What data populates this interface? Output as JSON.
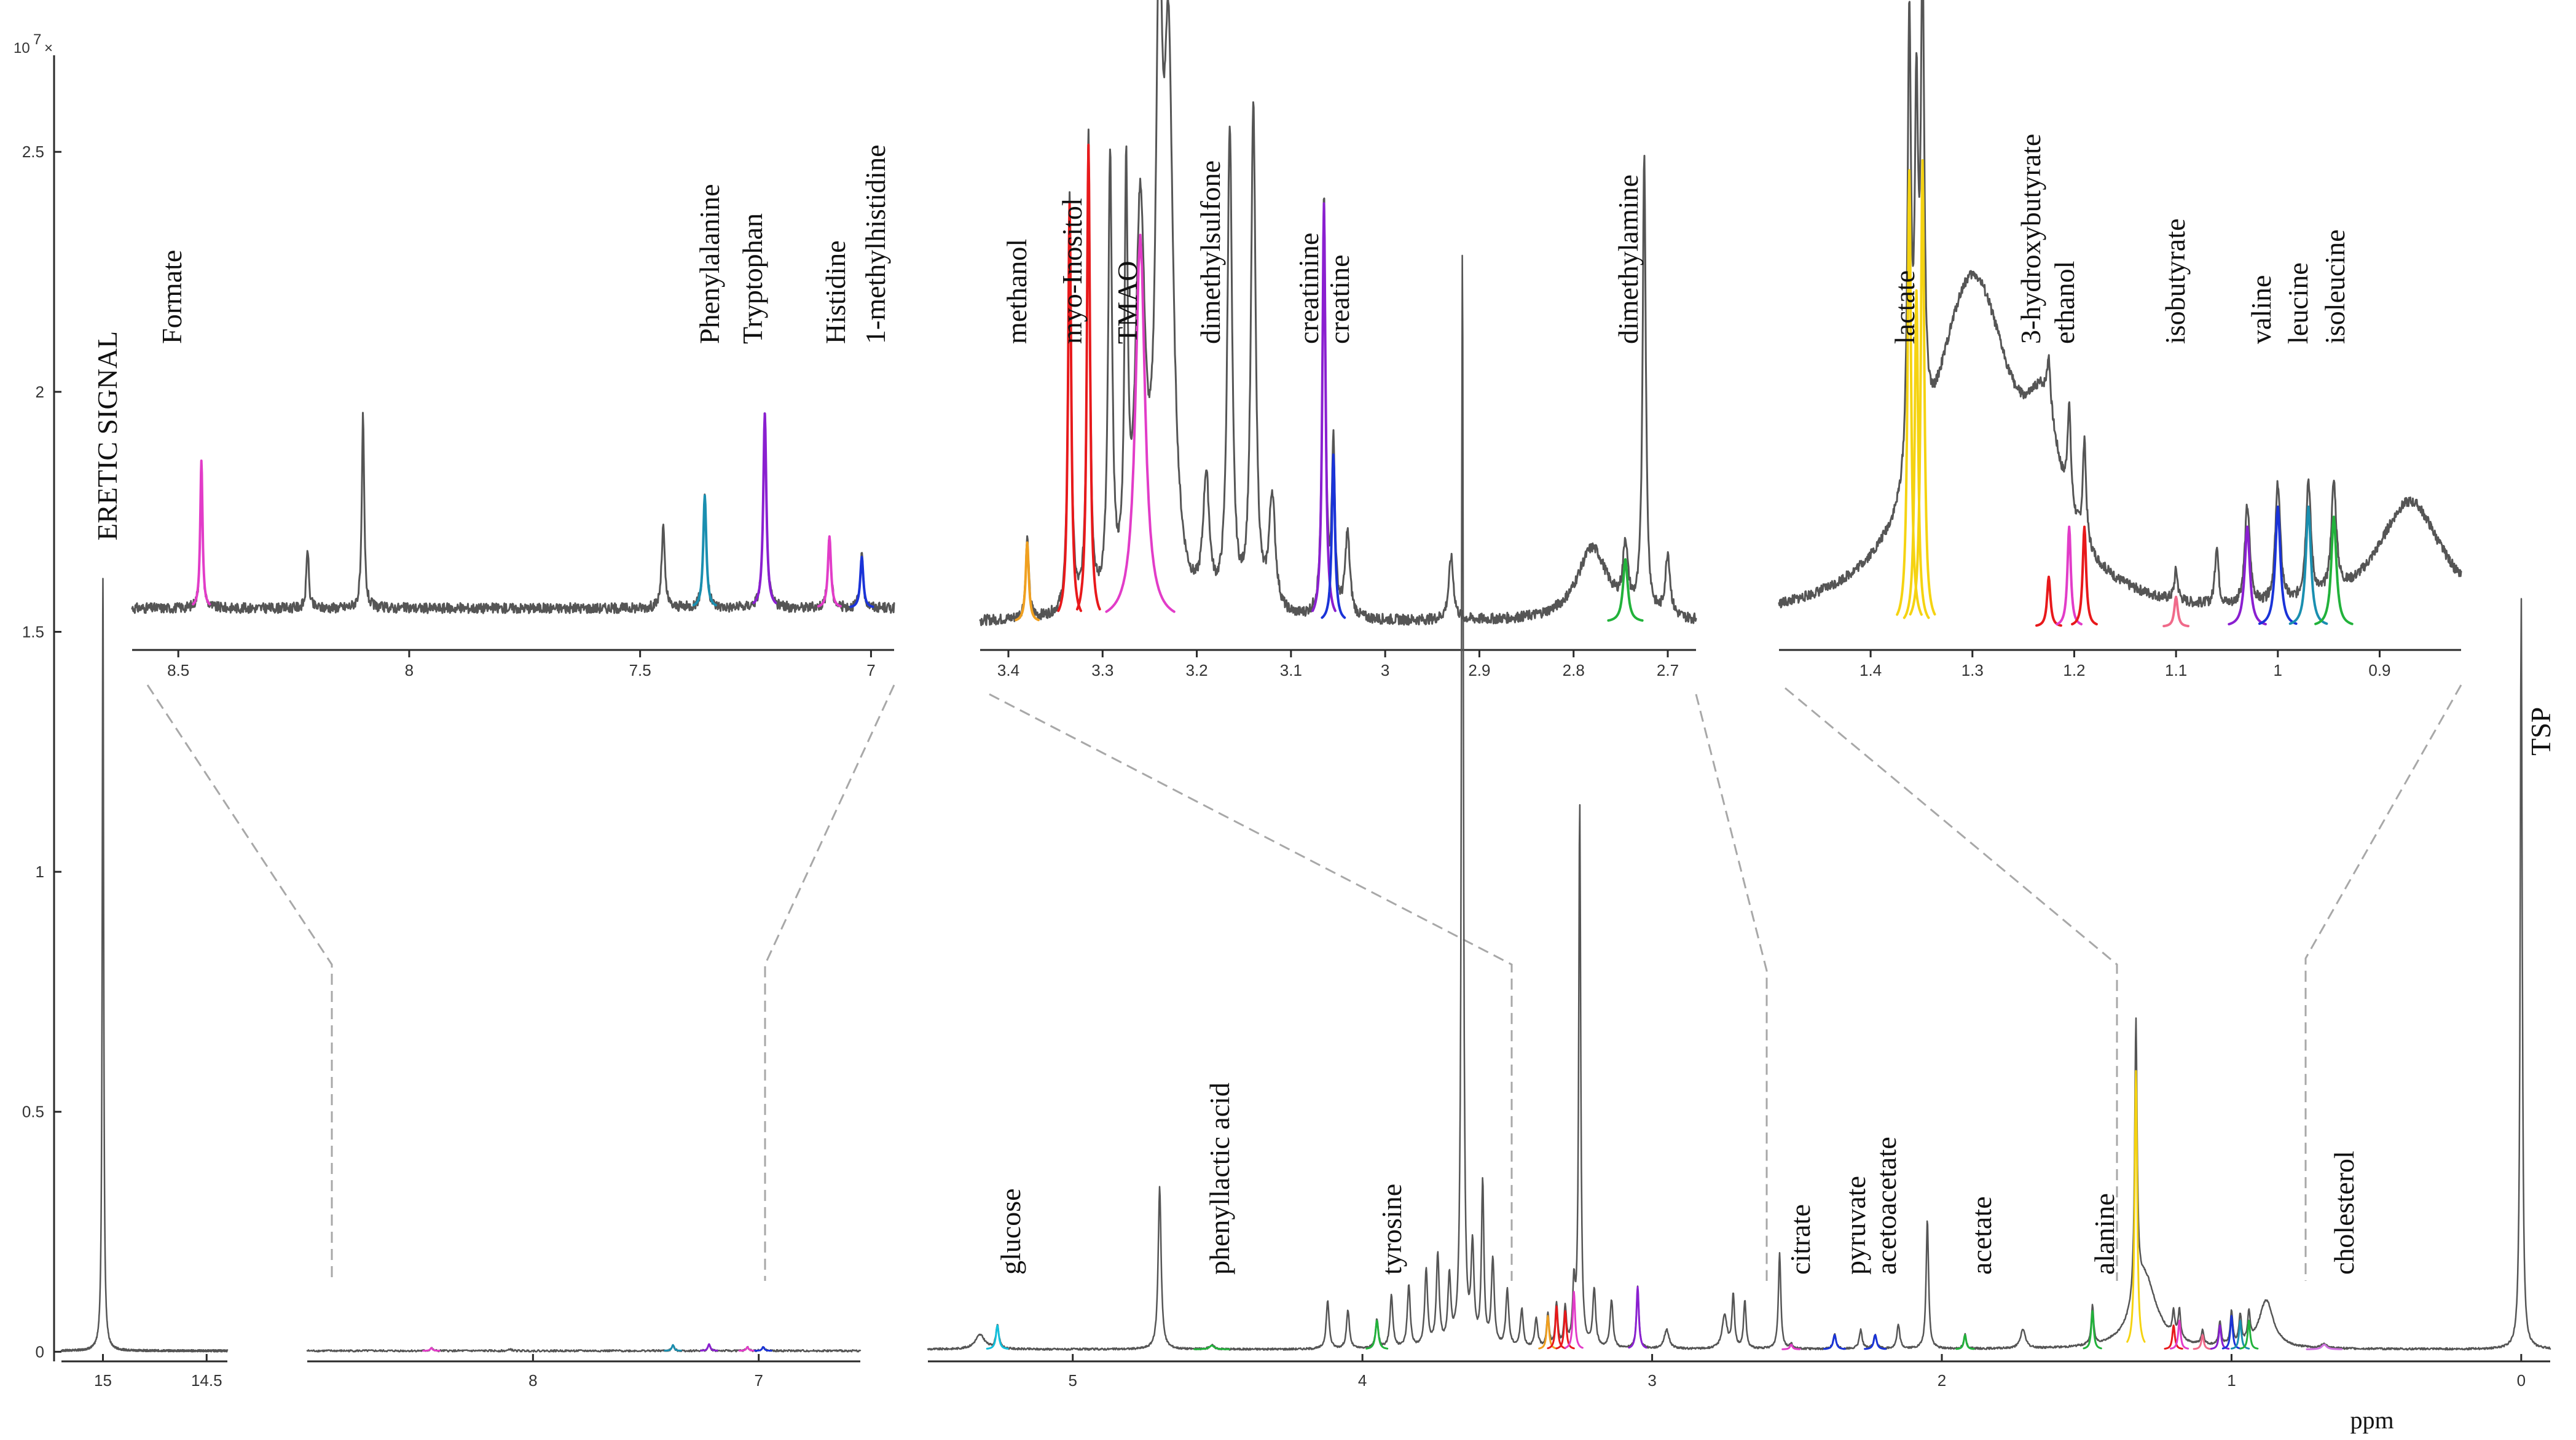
{
  "chart_data": {
    "type": "line",
    "title": "",
    "xlabel": "ppm",
    "ylabel": "",
    "y_exponent": "10",
    "y_exponent_power": "7",
    "y_exponent_suffix": "×",
    "ylim": [
      -0.02,
      2.65
    ],
    "y_ticks": [
      {
        "v": 0,
        "label": "0"
      },
      {
        "v": 0.5,
        "label": "0.5"
      },
      {
        "v": 1,
        "label": "1"
      },
      {
        "v": 1.5,
        "label": "1.5"
      },
      {
        "v": 2,
        "label": "2"
      },
      {
        "v": 2.5,
        "label": "2.5"
      }
    ],
    "colors": {
      "base": "#555555",
      "red": "#e8191b",
      "magenta": "#e23cc8",
      "purple": "#8a1fd0",
      "blue": "#1a33d8",
      "teal": "#1a8fb0",
      "cyan": "#12c0dc",
      "yellow": "#f5d311",
      "green": "#22b23b",
      "orange": "#f0a020",
      "pink": "#f06a8a",
      "lightmagenta": "#d070e0"
    },
    "main_segments": [
      {
        "name": "eretic-region",
        "xlim": [
          15.2,
          14.4
        ],
        "x_ticks": [
          {
            "v": 15,
            "label": "15"
          },
          {
            "v": 14.5,
            "label": "14.5"
          }
        ],
        "baseline": 0.002,
        "peaks": [
          {
            "x": 15.0,
            "h": 1.61,
            "w": 0.004,
            "c": "base"
          }
        ]
      },
      {
        "name": "aromatic-region",
        "xlim": [
          9.0,
          6.55
        ],
        "x_ticks": [
          {
            "v": 8,
            "label": "8"
          },
          {
            "v": 7,
            "label": "7"
          }
        ],
        "baseline": 0.002,
        "peaks": [
          {
            "x": 8.45,
            "h": 0.006,
            "w": 0.006,
            "c": "magenta"
          },
          {
            "x": 7.38,
            "h": 0.012,
            "w": 0.006,
            "c": "teal"
          },
          {
            "x": 7.22,
            "h": 0.014,
            "w": 0.006,
            "c": "purple"
          },
          {
            "x": 7.05,
            "h": 0.008,
            "w": 0.006,
            "c": "magenta"
          },
          {
            "x": 6.98,
            "h": 0.008,
            "w": 0.006,
            "c": "blue"
          },
          {
            "x": 8.1,
            "h": 0.004,
            "w": 0.006,
            "c": "base"
          }
        ]
      },
      {
        "name": "aliphatic-region",
        "xlim": [
          5.5,
          -0.1
        ],
        "x_ticks": [
          {
            "v": 5,
            "label": "5"
          },
          {
            "v": 4,
            "label": "4"
          },
          {
            "v": 3,
            "label": "3"
          },
          {
            "v": 2,
            "label": "2"
          },
          {
            "v": 1,
            "label": "1"
          },
          {
            "v": 0,
            "label": "0"
          }
        ],
        "baseline": 0.005,
        "peaks": [
          {
            "x": 5.32,
            "h": 0.03,
            "w": 0.02,
            "c": "base"
          },
          {
            "x": 5.26,
            "h": 0.05,
            "w": 0.006,
            "c": "cyan"
          },
          {
            "x": 4.7,
            "h": 0.34,
            "w": 0.006,
            "c": "base"
          },
          {
            "x": 4.52,
            "h": 0.008,
            "w": 0.01,
            "c": "green"
          },
          {
            "x": 4.12,
            "h": 0.1,
            "w": 0.006,
            "c": "base"
          },
          {
            "x": 4.05,
            "h": 0.08,
            "w": 0.006,
            "c": "base"
          },
          {
            "x": 3.95,
            "h": 0.06,
            "w": 0.006,
            "c": "green"
          },
          {
            "x": 3.9,
            "h": 0.11,
            "w": 0.006,
            "c": "base"
          },
          {
            "x": 3.84,
            "h": 0.13,
            "w": 0.006,
            "c": "base"
          },
          {
            "x": 3.78,
            "h": 0.16,
            "w": 0.006,
            "c": "base"
          },
          {
            "x": 3.74,
            "h": 0.19,
            "w": 0.006,
            "c": "base"
          },
          {
            "x": 3.7,
            "h": 0.14,
            "w": 0.006,
            "c": "base"
          },
          {
            "x": 3.655,
            "h": 2.3,
            "w": 0.004,
            "c": "base"
          },
          {
            "x": 3.62,
            "h": 0.2,
            "w": 0.006,
            "c": "base"
          },
          {
            "x": 3.585,
            "h": 0.34,
            "w": 0.005,
            "c": "base"
          },
          {
            "x": 3.55,
            "h": 0.18,
            "w": 0.006,
            "c": "base"
          },
          {
            "x": 3.5,
            "h": 0.12,
            "w": 0.006,
            "c": "base"
          },
          {
            "x": 3.45,
            "h": 0.08,
            "w": 0.006,
            "c": "base"
          },
          {
            "x": 3.4,
            "h": 0.06,
            "w": 0.006,
            "c": "base"
          },
          {
            "x": 3.36,
            "h": 0.07,
            "w": 0.005,
            "c": "orange"
          },
          {
            "x": 3.33,
            "h": 0.09,
            "w": 0.005,
            "c": "red"
          },
          {
            "x": 3.3,
            "h": 0.08,
            "w": 0.005,
            "c": "red"
          },
          {
            "x": 3.27,
            "h": 0.12,
            "w": 0.005,
            "c": "magenta"
          },
          {
            "x": 3.25,
            "h": 1.14,
            "w": 0.004,
            "c": "base"
          },
          {
            "x": 3.2,
            "h": 0.12,
            "w": 0.006,
            "c": "base"
          },
          {
            "x": 3.14,
            "h": 0.1,
            "w": 0.006,
            "c": "base"
          },
          {
            "x": 3.05,
            "h": 0.13,
            "w": 0.005,
            "c": "purple"
          },
          {
            "x": 2.95,
            "h": 0.04,
            "w": 0.01,
            "c": "base"
          },
          {
            "x": 2.75,
            "h": 0.07,
            "w": 0.01,
            "c": "base"
          },
          {
            "x": 2.72,
            "h": 0.11,
            "w": 0.005,
            "c": "base"
          },
          {
            "x": 2.56,
            "h": 0.2,
            "w": 0.005,
            "c": "base"
          },
          {
            "x": 2.68,
            "h": 0.1,
            "w": 0.005,
            "c": "base"
          },
          {
            "x": 2.52,
            "h": 0.01,
            "w": 0.005,
            "c": "magenta"
          },
          {
            "x": 2.37,
            "h": 0.03,
            "w": 0.006,
            "c": "blue"
          },
          {
            "x": 2.28,
            "h": 0.04,
            "w": 0.006,
            "c": "base"
          },
          {
            "x": 2.23,
            "h": 0.03,
            "w": 0.006,
            "c": "blue"
          },
          {
            "x": 2.15,
            "h": 0.05,
            "w": 0.006,
            "c": "base"
          },
          {
            "x": 2.05,
            "h": 0.27,
            "w": 0.005,
            "c": "base"
          },
          {
            "x": 1.92,
            "h": 0.03,
            "w": 0.005,
            "c": "green"
          },
          {
            "x": 1.72,
            "h": 0.04,
            "w": 0.01,
            "c": "base"
          },
          {
            "x": 1.48,
            "h": 0.08,
            "w": 0.005,
            "c": "green"
          },
          {
            "x": 1.33,
            "h": 0.58,
            "w": 0.005,
            "c": "yellow"
          },
          {
            "x": 1.3,
            "h": 0.15,
            "w": 0.05,
            "c": "base"
          },
          {
            "x": 1.2,
            "h": 0.05,
            "w": 0.005,
            "c": "red"
          },
          {
            "x": 1.18,
            "h": 0.06,
            "w": 0.005,
            "c": "magenta"
          },
          {
            "x": 1.1,
            "h": 0.03,
            "w": 0.005,
            "c": "pink"
          },
          {
            "x": 1.04,
            "h": 0.05,
            "w": 0.005,
            "c": "purple"
          },
          {
            "x": 1.0,
            "h": 0.07,
            "w": 0.005,
            "c": "blue"
          },
          {
            "x": 0.97,
            "h": 0.06,
            "w": 0.005,
            "c": "teal"
          },
          {
            "x": 0.94,
            "h": 0.06,
            "w": 0.005,
            "c": "green"
          },
          {
            "x": 0.88,
            "h": 0.1,
            "w": 0.03,
            "c": "base"
          },
          {
            "x": 0.68,
            "h": 0.01,
            "w": 0.01,
            "c": "lightmagenta"
          },
          {
            "x": 0.0,
            "h": 1.57,
            "w": 0.004,
            "c": "base"
          }
        ]
      }
    ],
    "insets": [
      {
        "name": "inset-aromatic",
        "xlim": [
          8.6,
          6.95
        ],
        "x_ticks": [
          {
            "v": 8.5,
            "label": "8.5"
          },
          {
            "v": 8,
            "label": "8"
          },
          {
            "v": 7.5,
            "label": "7.5"
          },
          {
            "v": 7,
            "label": "7"
          }
        ],
        "baseline": 0.15,
        "peaks": [
          {
            "x": 8.45,
            "h": 0.72,
            "w": 0.003,
            "c": "magenta"
          },
          {
            "x": 8.22,
            "h": 0.3,
            "w": 0.003,
            "c": "base"
          },
          {
            "x": 8.1,
            "h": 0.95,
            "w": 0.003,
            "c": "base"
          },
          {
            "x": 7.45,
            "h": 0.4,
            "w": 0.004,
            "c": "base"
          },
          {
            "x": 7.36,
            "h": 0.55,
            "w": 0.004,
            "c": "teal"
          },
          {
            "x": 7.23,
            "h": 0.95,
            "w": 0.004,
            "c": "purple"
          },
          {
            "x": 7.09,
            "h": 0.35,
            "w": 0.004,
            "c": "magenta"
          },
          {
            "x": 7.02,
            "h": 0.25,
            "w": 0.004,
            "c": "blue"
          }
        ]
      },
      {
        "name": "inset-mid",
        "xlim": [
          3.43,
          2.67
        ],
        "x_ticks": [
          {
            "v": 3.4,
            "label": "3.4"
          },
          {
            "v": 3.3,
            "label": "3.3"
          },
          {
            "v": 3.2,
            "label": "3.2"
          },
          {
            "v": 3.1,
            "label": "3.1"
          },
          {
            "v": 3,
            "label": "3"
          },
          {
            "v": 2.9,
            "label": "2.9"
          },
          {
            "v": 2.8,
            "label": "2.8"
          },
          {
            "v": 2.7,
            "label": "2.7"
          }
        ],
        "baseline": 0.08,
        "peaks": [
          {
            "x": 3.38,
            "h": 0.38,
            "w": 0.002,
            "c": "orange"
          },
          {
            "x": 3.335,
            "h": 2.0,
            "w": 0.002,
            "c": "red"
          },
          {
            "x": 3.315,
            "h": 2.28,
            "w": 0.002,
            "c": "red"
          },
          {
            "x": 3.292,
            "h": 2.1,
            "w": 0.0025,
            "c": "base"
          },
          {
            "x": 3.275,
            "h": 1.9,
            "w": 0.002,
            "c": "base"
          },
          {
            "x": 3.26,
            "h": 1.85,
            "w": 0.006,
            "c": "magenta"
          },
          {
            "x": 3.24,
            "h": 2.6,
            "w": 0.004,
            "c": "base"
          },
          {
            "x": 3.23,
            "h": 2.5,
            "w": 0.006,
            "c": "base"
          },
          {
            "x": 3.19,
            "h": 0.6,
            "w": 0.004,
            "c": "base"
          },
          {
            "x": 3.165,
            "h": 2.3,
            "w": 0.003,
            "c": "base"
          },
          {
            "x": 3.14,
            "h": 2.4,
            "w": 0.003,
            "c": "base"
          },
          {
            "x": 3.12,
            "h": 0.55,
            "w": 0.004,
            "c": "base"
          },
          {
            "x": 3.065,
            "h": 2.0,
            "w": 0.002,
            "c": "purple"
          },
          {
            "x": 3.055,
            "h": 0.8,
            "w": 0.002,
            "c": "blue"
          },
          {
            "x": 3.04,
            "h": 0.4,
            "w": 0.003,
            "c": "base"
          },
          {
            "x": 2.93,
            "h": 0.3,
            "w": 0.003,
            "c": "base"
          },
          {
            "x": 2.78,
            "h": 0.35,
            "w": 0.02,
            "c": "base"
          },
          {
            "x": 2.745,
            "h": 0.3,
            "w": 0.003,
            "c": "green"
          },
          {
            "x": 2.725,
            "h": 2.2,
            "w": 0.002,
            "c": "base"
          },
          {
            "x": 2.7,
            "h": 0.3,
            "w": 0.003,
            "c": "base"
          }
        ]
      },
      {
        "name": "inset-aliphatic",
        "xlim": [
          1.49,
          0.82
        ],
        "x_ticks": [
          {
            "v": 1.4,
            "label": "1.4"
          },
          {
            "v": 1.3,
            "label": "1.3"
          },
          {
            "v": 1.2,
            "label": "1.2"
          },
          {
            "v": 1.1,
            "label": "1.1"
          },
          {
            "v": 1,
            "label": "1"
          },
          {
            "v": 0.9,
            "label": "0.9"
          }
        ],
        "baseline": 0.06,
        "peaks": [
          {
            "x": 1.362,
            "h": 2.28,
            "w": 0.002,
            "c": "yellow"
          },
          {
            "x": 1.355,
            "h": 1.68,
            "w": 0.002,
            "c": "yellow"
          },
          {
            "x": 1.349,
            "h": 2.33,
            "w": 0.002,
            "c": "yellow"
          },
          {
            "x": 1.3,
            "h": 1.7,
            "w": 0.05,
            "c": "base"
          },
          {
            "x": 1.23,
            "h": 0.6,
            "w": 0.02,
            "c": "base"
          },
          {
            "x": 1.225,
            "h": 0.25,
            "w": 0.002,
            "c": "red"
          },
          {
            "x": 1.205,
            "h": 0.5,
            "w": 0.002,
            "c": "magenta"
          },
          {
            "x": 1.19,
            "h": 0.5,
            "w": 0.002,
            "c": "red"
          },
          {
            "x": 1.1,
            "h": 0.15,
            "w": 0.002,
            "c": "pink"
          },
          {
            "x": 1.06,
            "h": 0.3,
            "w": 0.002,
            "c": "base"
          },
          {
            "x": 1.03,
            "h": 0.5,
            "w": 0.003,
            "c": "purple"
          },
          {
            "x": 1.0,
            "h": 0.6,
            "w": 0.003,
            "c": "blue"
          },
          {
            "x": 0.97,
            "h": 0.6,
            "w": 0.003,
            "c": "teal"
          },
          {
            "x": 0.945,
            "h": 0.55,
            "w": 0.003,
            "c": "green"
          },
          {
            "x": 0.87,
            "h": 0.6,
            "w": 0.04,
            "c": "base"
          }
        ]
      }
    ],
    "annotations": [
      {
        "label": "ERETIC SIGNAL",
        "region": "main-eretic"
      },
      {
        "label": "TSP",
        "region": "main-tsp"
      },
      {
        "label": "Formate",
        "region": "inset-aromatic"
      },
      {
        "label": "Phenylalanine",
        "region": "inset-aromatic"
      },
      {
        "label": "Tryptophan",
        "region": "inset-aromatic"
      },
      {
        "label": "Histidine",
        "region": "inset-aromatic"
      },
      {
        "label": "1-methylhistidine",
        "region": "inset-aromatic"
      },
      {
        "label": "methanol",
        "region": "inset-mid"
      },
      {
        "label": "myo-Inositol",
        "region": "inset-mid"
      },
      {
        "label": "TMAO",
        "region": "inset-mid"
      },
      {
        "label": "dimethylsulfone",
        "region": "inset-mid"
      },
      {
        "label": "creatinine",
        "region": "inset-mid"
      },
      {
        "label": "creatine",
        "region": "inset-mid"
      },
      {
        "label": "dimethylamine",
        "region": "inset-mid"
      },
      {
        "label": "lactate",
        "region": "inset-aliphatic"
      },
      {
        "label": "3-hydroxybutyrate",
        "region": "inset-aliphatic"
      },
      {
        "label": "ethanol",
        "region": "inset-aliphatic"
      },
      {
        "label": "isobutyrate",
        "region": "inset-aliphatic"
      },
      {
        "label": "valine",
        "region": "inset-aliphatic"
      },
      {
        "label": "leucine",
        "region": "inset-aliphatic"
      },
      {
        "label": "isoleucine",
        "region": "inset-aliphatic"
      },
      {
        "label": "glucose",
        "region": "main-aliphatic"
      },
      {
        "label": "phenyllactic acid",
        "region": "main-aliphatic"
      },
      {
        "label": "tyrosine",
        "region": "main-aliphatic"
      },
      {
        "label": "citrate",
        "region": "main-aliphatic"
      },
      {
        "label": "pyruvate",
        "region": "main-aliphatic"
      },
      {
        "label": "acetoacetate",
        "region": "main-aliphatic"
      },
      {
        "label": "acetate",
        "region": "main-aliphatic"
      },
      {
        "label": "alanine",
        "region": "main-aliphatic"
      },
      {
        "label": "cholesterol",
        "region": "main-aliphatic"
      }
    ]
  }
}
